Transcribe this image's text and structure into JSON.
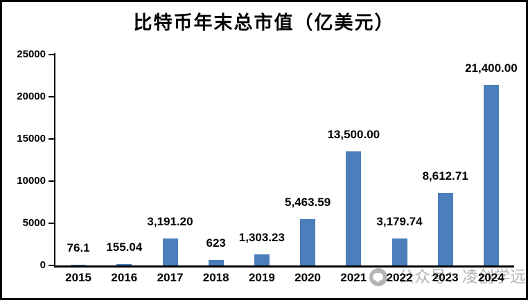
{
  "page": {
    "background": "#ffffff",
    "frame_color": "#000000"
  },
  "chart_data": {
    "type": "bar",
    "title": "比特币年末总市值（亿美元）",
    "categories": [
      "2015",
      "2016",
      "2017",
      "2018",
      "2019",
      "2020",
      "2021",
      "2022",
      "2023",
      "2024"
    ],
    "values": [
      76.1,
      155.04,
      3191.2,
      623,
      1303.23,
      5463.59,
      13500.0,
      3179.74,
      8612.71,
      21400.0
    ],
    "value_labels": [
      "76.1",
      "155.04",
      "3,191.20",
      "623",
      "1,303.23",
      "5,463.59",
      "13,500.00",
      "3,179.74",
      "8,612.71",
      "21,400.00"
    ],
    "xlabel": "",
    "ylabel": "",
    "ylim": [
      0,
      25000
    ],
    "yticks": [
      0,
      5000,
      10000,
      15000,
      20000,
      25000
    ],
    "ytick_labels": [
      "0",
      "5000",
      "10000",
      "15000",
      "20000",
      "25000"
    ],
    "grid": false,
    "legend": "none",
    "bar_color": "#4d7ebc",
    "axis_color": "#000000",
    "text_color": "#000000"
  },
  "watermark": {
    "icon": "wechat-icon",
    "text": "公众号：凌创学远",
    "color": "#b4b4b4"
  }
}
